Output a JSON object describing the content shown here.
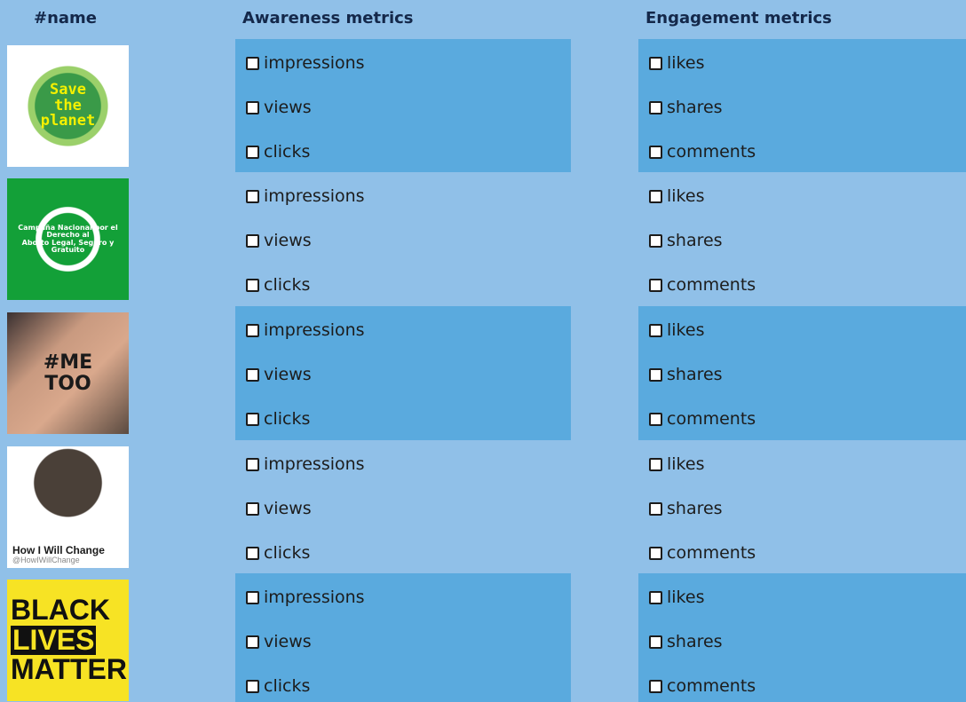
{
  "header": {
    "name": "#name",
    "awareness": "Awareness metrics",
    "engagement": "Engagement metrics"
  },
  "rows": [
    {
      "image_text": [
        "Save",
        "the",
        "planet"
      ],
      "awareness": [
        "impressions",
        "views",
        "clicks"
      ],
      "engagement": [
        "likes",
        "shares",
        "comments"
      ]
    },
    {
      "image_text": [
        "Campaña Nacional por el Derecho al",
        "Aborto Legal, Seguro y Gratuito"
      ],
      "awareness": [
        "impressions",
        "views",
        "clicks"
      ],
      "engagement": [
        "likes",
        "shares",
        "comments"
      ]
    },
    {
      "image_text": [
        "#ME",
        "TOO"
      ],
      "awareness": [
        "impressions",
        "views",
        "clicks"
      ],
      "engagement": [
        "likes",
        "shares",
        "comments"
      ]
    },
    {
      "image_text": [
        "How I Will Change",
        "@HowIWillChange"
      ],
      "awareness": [
        "impressions",
        "views",
        "clicks"
      ],
      "engagement": [
        "likes",
        "shares",
        "comments"
      ]
    },
    {
      "image_text": [
        "BLACK",
        "LIVES",
        "MATTER"
      ],
      "awareness": [
        "impressions",
        "views",
        "clicks"
      ],
      "engagement": [
        "likes",
        "shares",
        "comments"
      ]
    }
  ]
}
